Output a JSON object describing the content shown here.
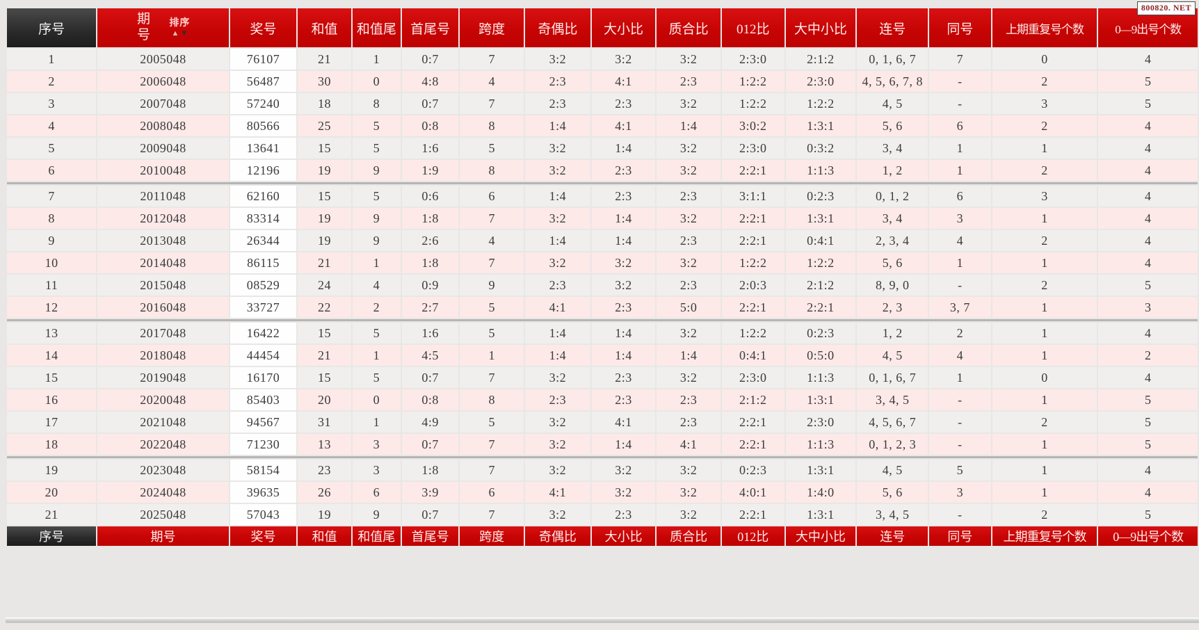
{
  "watermark": "800820. NET",
  "colors": {
    "header_red": "#c70404",
    "header_dark": "#2a2a2a",
    "row_grey": "#f0efed",
    "row_pink": "#fce9e8",
    "prize_column_bg": "#fefefe",
    "group_separator": "#b5b5b5"
  },
  "header": {
    "columns": [
      "序号",
      "期号",
      "奖号",
      "和值",
      "和值尾",
      "首尾号",
      "跨度",
      "奇偶比",
      "大小比",
      "质合比",
      "012比",
      "大中小比",
      "连号",
      "同号",
      "上期重复号个数",
      "0—9出号个数"
    ],
    "sort_label": "排序",
    "sort_up_icon": "▲",
    "sort_down_icon": "▼"
  },
  "footer": {
    "columns": [
      "序号",
      "期号",
      "奖号",
      "和值",
      "和值尾",
      "首尾号",
      "跨度",
      "奇偶比",
      "大小比",
      "质合比",
      "012比",
      "大中小比",
      "连号",
      "同号",
      "上期重复号个数",
      "0—9出号个数"
    ]
  },
  "table": {
    "group_breaks": [
      6,
      12,
      18
    ],
    "rows": [
      [
        "1",
        "2005048",
        "76107",
        "21",
        "1",
        "0:7",
        "7",
        "3:2",
        "3:2",
        "3:2",
        "2:3:0",
        "2:1:2",
        "0, 1, 6, 7",
        "7",
        "0",
        "4"
      ],
      [
        "2",
        "2006048",
        "56487",
        "30",
        "0",
        "4:8",
        "4",
        "2:3",
        "4:1",
        "2:3",
        "1:2:2",
        "2:3:0",
        "4, 5, 6, 7, 8",
        "-",
        "2",
        "5"
      ],
      [
        "3",
        "2007048",
        "57240",
        "18",
        "8",
        "0:7",
        "7",
        "2:3",
        "2:3",
        "3:2",
        "1:2:2",
        "1:2:2",
        "4, 5",
        "-",
        "3",
        "5"
      ],
      [
        "4",
        "2008048",
        "80566",
        "25",
        "5",
        "0:8",
        "8",
        "1:4",
        "4:1",
        "1:4",
        "3:0:2",
        "1:3:1",
        "5, 6",
        "6",
        "2",
        "4"
      ],
      [
        "5",
        "2009048",
        "13641",
        "15",
        "5",
        "1:6",
        "5",
        "3:2",
        "1:4",
        "3:2",
        "2:3:0",
        "0:3:2",
        "3, 4",
        "1",
        "1",
        "4"
      ],
      [
        "6",
        "2010048",
        "12196",
        "19",
        "9",
        "1:9",
        "8",
        "3:2",
        "2:3",
        "3:2",
        "2:2:1",
        "1:1:3",
        "1, 2",
        "1",
        "2",
        "4"
      ],
      [
        "7",
        "2011048",
        "62160",
        "15",
        "5",
        "0:6",
        "6",
        "1:4",
        "2:3",
        "2:3",
        "3:1:1",
        "0:2:3",
        "0, 1, 2",
        "6",
        "3",
        "4"
      ],
      [
        "8",
        "2012048",
        "83314",
        "19",
        "9",
        "1:8",
        "7",
        "3:2",
        "1:4",
        "3:2",
        "2:2:1",
        "1:3:1",
        "3, 4",
        "3",
        "1",
        "4"
      ],
      [
        "9",
        "2013048",
        "26344",
        "19",
        "9",
        "2:6",
        "4",
        "1:4",
        "1:4",
        "2:3",
        "2:2:1",
        "0:4:1",
        "2, 3, 4",
        "4",
        "2",
        "4"
      ],
      [
        "10",
        "2014048",
        "86115",
        "21",
        "1",
        "1:8",
        "7",
        "3:2",
        "3:2",
        "3:2",
        "1:2:2",
        "1:2:2",
        "5, 6",
        "1",
        "1",
        "4"
      ],
      [
        "11",
        "2015048",
        "08529",
        "24",
        "4",
        "0:9",
        "9",
        "2:3",
        "3:2",
        "2:3",
        "2:0:3",
        "2:1:2",
        "8, 9, 0",
        "-",
        "2",
        "5"
      ],
      [
        "12",
        "2016048",
        "33727",
        "22",
        "2",
        "2:7",
        "5",
        "4:1",
        "2:3",
        "5:0",
        "2:2:1",
        "2:2:1",
        "2, 3",
        "3, 7",
        "1",
        "3"
      ],
      [
        "13",
        "2017048",
        "16422",
        "15",
        "5",
        "1:6",
        "5",
        "1:4",
        "1:4",
        "3:2",
        "1:2:2",
        "0:2:3",
        "1, 2",
        "2",
        "1",
        "4"
      ],
      [
        "14",
        "2018048",
        "44454",
        "21",
        "1",
        "4:5",
        "1",
        "1:4",
        "1:4",
        "1:4",
        "0:4:1",
        "0:5:0",
        "4, 5",
        "4",
        "1",
        "2"
      ],
      [
        "15",
        "2019048",
        "16170",
        "15",
        "5",
        "0:7",
        "7",
        "3:2",
        "2:3",
        "3:2",
        "2:3:0",
        "1:1:3",
        "0, 1, 6, 7",
        "1",
        "0",
        "4"
      ],
      [
        "16",
        "2020048",
        "85403",
        "20",
        "0",
        "0:8",
        "8",
        "2:3",
        "2:3",
        "2:3",
        "2:1:2",
        "1:3:1",
        "3, 4, 5",
        "-",
        "1",
        "5"
      ],
      [
        "17",
        "2021048",
        "94567",
        "31",
        "1",
        "4:9",
        "5",
        "3:2",
        "4:1",
        "2:3",
        "2:2:1",
        "2:3:0",
        "4, 5, 6, 7",
        "-",
        "2",
        "5"
      ],
      [
        "18",
        "2022048",
        "71230",
        "13",
        "3",
        "0:7",
        "7",
        "3:2",
        "1:4",
        "4:1",
        "2:2:1",
        "1:1:3",
        "0, 1, 2, 3",
        "-",
        "1",
        "5"
      ],
      [
        "19",
        "2023048",
        "58154",
        "23",
        "3",
        "1:8",
        "7",
        "3:2",
        "3:2",
        "3:2",
        "0:2:3",
        "1:3:1",
        "4, 5",
        "5",
        "1",
        "4"
      ],
      [
        "20",
        "2024048",
        "39635",
        "26",
        "6",
        "3:9",
        "6",
        "4:1",
        "3:2",
        "3:2",
        "4:0:1",
        "1:4:0",
        "5, 6",
        "3",
        "1",
        "4"
      ],
      [
        "21",
        "2025048",
        "57043",
        "19",
        "9",
        "0:7",
        "7",
        "3:2",
        "2:3",
        "3:2",
        "2:2:1",
        "1:3:1",
        "3, 4, 5",
        "-",
        "2",
        "5"
      ]
    ]
  }
}
